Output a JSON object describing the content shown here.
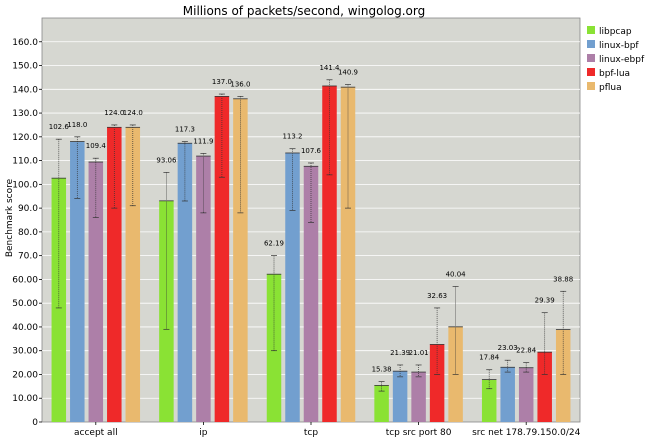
{
  "chart_data": {
    "type": "bar",
    "title": "Millions of packets/second, wingolog.org",
    "xlabel": "",
    "ylabel": "Benchmark score",
    "ylim": [
      0,
      170
    ],
    "yticks": [
      0,
      10,
      20,
      30,
      40,
      50,
      60,
      70,
      80,
      90,
      100,
      110,
      120,
      130,
      140,
      150,
      160
    ],
    "ytick_labels": [
      "0",
      "10.00",
      "20.00",
      "30.00",
      "40.00",
      "50.00",
      "60.00",
      "70.0",
      "80.0",
      "90.0",
      "100.0",
      "110.0",
      "120.0",
      "130.0",
      "140.0",
      "150.0",
      "160.0"
    ],
    "categories": [
      "accept all",
      "ip",
      "tcp",
      "tcp src port 80",
      "src net 178.79.150.0/24"
    ],
    "grid": true,
    "legend_position": "right",
    "background": "#d6d7d1",
    "series": [
      {
        "name": "libpcap",
        "color": "#8ae234",
        "values": [
          102.6,
          93.06,
          62.19,
          15.38,
          17.84
        ],
        "labels": [
          "102.6",
          "93.06",
          "62.19",
          "15.38",
          "17.84"
        ],
        "err_low": [
          48,
          39,
          30,
          13,
          14
        ],
        "err_high": [
          119,
          105,
          70,
          17,
          22
        ]
      },
      {
        "name": "linux-bpf",
        "color": "#729fcf",
        "values": [
          118.0,
          117.3,
          113.2,
          21.39,
          23.03
        ],
        "labels": [
          "118.0",
          "117.3",
          "113.2",
          "21.39",
          "23.03"
        ],
        "err_low": [
          94,
          93,
          89,
          19,
          21
        ],
        "err_high": [
          120,
          118,
          115,
          24,
          26
        ]
      },
      {
        "name": "linux-ebpf",
        "color": "#ad7fa8",
        "values": [
          109.4,
          111.9,
          107.6,
          21.01,
          22.84
        ],
        "labels": [
          "109.4",
          "111.9",
          "107.6",
          "21.01",
          "22.84"
        ],
        "err_low": [
          86,
          88,
          84,
          19,
          21
        ],
        "err_high": [
          111,
          113,
          109,
          24,
          25
        ]
      },
      {
        "name": "bpf-lua",
        "color": "#ef2929",
        "values": [
          124.0,
          137.0,
          141.4,
          32.63,
          29.39
        ],
        "labels": [
          "124.0",
          "137.0",
          "141.4",
          "32.63",
          "29.39"
        ],
        "err_low": [
          90,
          103,
          104,
          20,
          20
        ],
        "err_high": [
          125,
          138,
          144,
          48,
          46
        ]
      },
      {
        "name": "pflua",
        "color": "#e9b96e",
        "values": [
          124.0,
          136.0,
          140.9,
          40.04,
          38.88
        ],
        "labels": [
          "124.0",
          "136.0",
          "140.9",
          "40.04",
          "38.88"
        ],
        "err_low": [
          91,
          88,
          90,
          20,
          20
        ],
        "err_high": [
          125,
          137,
          142,
          57,
          55
        ]
      }
    ]
  }
}
